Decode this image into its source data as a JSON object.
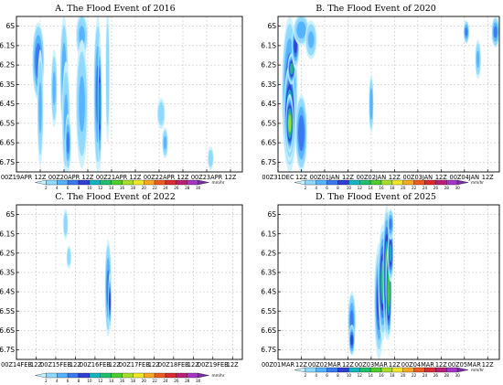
{
  "figure": {
    "layout": "2x2 panels of time–latitude rainfall contour plots"
  },
  "colorbar": {
    "levels": [
      2,
      4,
      6,
      8,
      10,
      12,
      14,
      16,
      18,
      20,
      22,
      24,
      26,
      28,
      30
    ],
    "tick_labels": [
      "2",
      "4",
      "6",
      "8",
      "10",
      "12",
      "14",
      "16",
      "18",
      "20",
      "22",
      "24",
      "26",
      "28",
      "30"
    ],
    "colors": [
      "#c9f0ff",
      "#8fd8ff",
      "#55b2ff",
      "#3c78ef",
      "#2f3fd2",
      "#16b4c0",
      "#1fbf6e",
      "#4ccd2c",
      "#a8dc2a",
      "#f2e628",
      "#f7a723",
      "#ee5b20",
      "#d92b32",
      "#bd1f78",
      "#a535c6",
      "#7a2ba8"
    ],
    "units": "mm/hr"
  },
  "chart_data": [
    {
      "type": "heatmap",
      "title": "A. The Flood Event of 2016",
      "y_ticks": [
        "6S",
        "6.1S",
        "6.2S",
        "6.3S",
        "6.4S",
        "6.5S",
        "6.6S",
        "6.7S"
      ],
      "y_tick_values": [
        -6.0,
        -6.1,
        -6.2,
        -6.3,
        -6.4,
        -6.5,
        -6.6,
        -6.7
      ],
      "ylim": [
        -6.75,
        -5.95
      ],
      "x_ticks": [
        "00Z19APR",
        "12Z",
        "00Z20APR",
        "12Z",
        "00Z21APR",
        "12Z",
        "00Z22APR",
        "12Z",
        "00Z23APR",
        "12Z"
      ],
      "x_tick_hours": [
        0,
        12,
        24,
        36,
        48,
        60,
        72,
        84,
        96,
        108
      ],
      "xlim_hours": [
        0,
        114
      ],
      "rain_cells": [
        {
          "t": 11,
          "lat": -6.18,
          "dt": 3,
          "dlat": 0.2,
          "peak": 7
        },
        {
          "t": 12,
          "lat": -6.42,
          "dt": 1.5,
          "dlat": 0.3,
          "peak": 4
        },
        {
          "t": 19,
          "lat": -6.32,
          "dt": 1.5,
          "dlat": 0.2,
          "peak": 4
        },
        {
          "t": 24,
          "lat": -6.25,
          "dt": 2,
          "dlat": 0.3,
          "peak": 5
        },
        {
          "t": 25,
          "lat": -6.48,
          "dt": 2,
          "dlat": 0.3,
          "peak": 4
        },
        {
          "t": 26,
          "lat": -6.6,
          "dt": 1.5,
          "dlat": 0.15,
          "peak": 6
        },
        {
          "t": 33,
          "lat": -6.05,
          "dt": 3,
          "dlat": 0.12,
          "peak": 4
        },
        {
          "t": 33,
          "lat": -6.4,
          "dt": 3,
          "dlat": 0.33,
          "peak": 4
        },
        {
          "t": 41,
          "lat": -6.35,
          "dt": 2,
          "dlat": 0.4,
          "peak": 6
        },
        {
          "t": 42,
          "lat": -6.4,
          "dt": 1,
          "dlat": 0.35,
          "peak": 10
        },
        {
          "t": 46,
          "lat": -6.25,
          "dt": 1,
          "dlat": 0.35,
          "peak": 3
        },
        {
          "t": 73,
          "lat": -6.45,
          "dt": 2,
          "dlat": 0.08,
          "peak": 3
        },
        {
          "t": 75,
          "lat": -6.6,
          "dt": 1.5,
          "dlat": 0.08,
          "peak": 4
        },
        {
          "t": 98,
          "lat": -6.68,
          "dt": 1.5,
          "dlat": 0.06,
          "peak": 3
        }
      ]
    },
    {
      "type": "heatmap",
      "title": "B. The Flood Event of 2020",
      "y_ticks": [
        "6S",
        "6.1S",
        "6.2S",
        "6.3S",
        "6.4S",
        "6.5S",
        "6.6S",
        "6.7S"
      ],
      "y_tick_values": [
        -6.0,
        -6.1,
        -6.2,
        -6.3,
        -6.4,
        -6.5,
        -6.6,
        -6.7
      ],
      "ylim": [
        -6.75,
        -5.95
      ],
      "x_ticks": [
        "00Z31DEC",
        "12Z",
        "00Z01JAN",
        "12Z",
        "00Z02JAN",
        "12Z",
        "00Z03JAN",
        "12Z",
        "00Z04JAN",
        "12Z"
      ],
      "x_tick_hours": [
        0,
        12,
        24,
        36,
        48,
        60,
        72,
        84,
        96,
        108
      ],
      "xlim_hours": [
        0,
        114
      ],
      "rain_cells": [
        {
          "t": 6,
          "lat": -6.35,
          "dt": 4,
          "dlat": 0.4,
          "peak": 8
        },
        {
          "t": 6,
          "lat": -6.45,
          "dt": 3,
          "dlat": 0.25,
          "peak": 15
        },
        {
          "t": 6,
          "lat": -6.5,
          "dt": 2,
          "dlat": 0.15,
          "peak": 16
        },
        {
          "t": 7,
          "lat": -6.22,
          "dt": 2,
          "dlat": 0.08,
          "peak": 12
        },
        {
          "t": 9,
          "lat": -6.1,
          "dt": 2,
          "dlat": 0.12,
          "peak": 9
        },
        {
          "t": 12,
          "lat": -6.02,
          "dt": 4,
          "dlat": 0.08,
          "peak": 5
        },
        {
          "t": 12,
          "lat": -6.55,
          "dt": 3,
          "dlat": 0.2,
          "peak": 7
        },
        {
          "t": 17,
          "lat": -6.07,
          "dt": 3,
          "dlat": 0.1,
          "peak": 4
        },
        {
          "t": 48,
          "lat": -6.4,
          "dt": 1.2,
          "dlat": 0.15,
          "peak": 5
        },
        {
          "t": 97,
          "lat": -6.03,
          "dt": 1.5,
          "dlat": 0.06,
          "peak": 6
        },
        {
          "t": 103,
          "lat": -6.17,
          "dt": 1.5,
          "dlat": 0.1,
          "peak": 4
        },
        {
          "t": 112,
          "lat": -6.03,
          "dt": 2,
          "dlat": 0.08,
          "peak": 6
        }
      ]
    },
    {
      "type": "heatmap",
      "title": "C. The Flood Event of 2022",
      "y_ticks": [
        "6S",
        "6.1S",
        "6.2S",
        "6.3S",
        "6.4S",
        "6.5S",
        "6.6S",
        "6.7S"
      ],
      "y_tick_values": [
        -6.0,
        -6.1,
        -6.2,
        -6.3,
        -6.4,
        -6.5,
        -6.6,
        -6.7
      ],
      "ylim": [
        -6.75,
        -5.95
      ],
      "x_ticks": [
        "00Z14FEB",
        "12Z",
        "00Z15FEB",
        "12Z",
        "00Z16FEB",
        "12Z",
        "00Z17FEB",
        "12Z",
        "00Z18FEB",
        "12Z",
        "00Z19FEB",
        "12Z"
      ],
      "x_tick_hours": [
        0,
        12,
        24,
        36,
        48,
        60,
        72,
        84,
        96,
        108,
        120,
        132
      ],
      "xlim_hours": [
        0,
        138
      ],
      "rain_cells": [
        {
          "t": 30,
          "lat": -6.05,
          "dt": 1.5,
          "dlat": 0.08,
          "peak": 3
        },
        {
          "t": 32,
          "lat": -6.22,
          "dt": 1.5,
          "dlat": 0.06,
          "peak": 3
        },
        {
          "t": 56,
          "lat": -6.38,
          "dt": 2,
          "dlat": 0.25,
          "peak": 6
        },
        {
          "t": 57,
          "lat": -6.45,
          "dt": 1,
          "dlat": 0.15,
          "peak": 9
        }
      ]
    },
    {
      "type": "heatmap",
      "title": "D. The Flood Event of 2025",
      "y_ticks": [
        "6S",
        "6.1S",
        "6.2S",
        "6.3S",
        "6.4S",
        "6.5S",
        "6.6S",
        "6.7S"
      ],
      "y_tick_values": [
        -6.0,
        -6.1,
        -6.2,
        -6.3,
        -6.4,
        -6.5,
        -6.6,
        -6.7
      ],
      "ylim": [
        -6.75,
        -5.95
      ],
      "x_ticks": [
        "00Z01MAR",
        "12Z",
        "00Z02MAR",
        "12Z",
        "00Z03MAR",
        "12Z",
        "00Z04MAR",
        "12Z",
        "00Z05MAR",
        "12Z"
      ],
      "x_tick_hours": [
        0,
        12,
        24,
        36,
        48,
        60,
        72,
        84,
        96,
        108
      ],
      "xlim_hours": [
        0,
        114
      ],
      "rain_cells": [
        {
          "t": 38,
          "lat": -6.55,
          "dt": 2,
          "dlat": 0.15,
          "peak": 6
        },
        {
          "t": 38,
          "lat": -6.65,
          "dt": 1.5,
          "dlat": 0.08,
          "peak": 8
        },
        {
          "t": 52,
          "lat": -6.45,
          "dt": 2.5,
          "dlat": 0.3,
          "peak": 9
        },
        {
          "t": 54,
          "lat": -6.35,
          "dt": 2.5,
          "dlat": 0.3,
          "peak": 12
        },
        {
          "t": 56,
          "lat": -6.3,
          "dt": 2,
          "dlat": 0.35,
          "peak": 14
        },
        {
          "t": 57,
          "lat": -6.4,
          "dt": 1.5,
          "dlat": 0.25,
          "peak": 15
        },
        {
          "t": 58,
          "lat": -6.2,
          "dt": 1.5,
          "dlat": 0.15,
          "peak": 11
        },
        {
          "t": 58,
          "lat": -6.05,
          "dt": 1.5,
          "dlat": 0.08,
          "peak": 6
        }
      ]
    }
  ]
}
